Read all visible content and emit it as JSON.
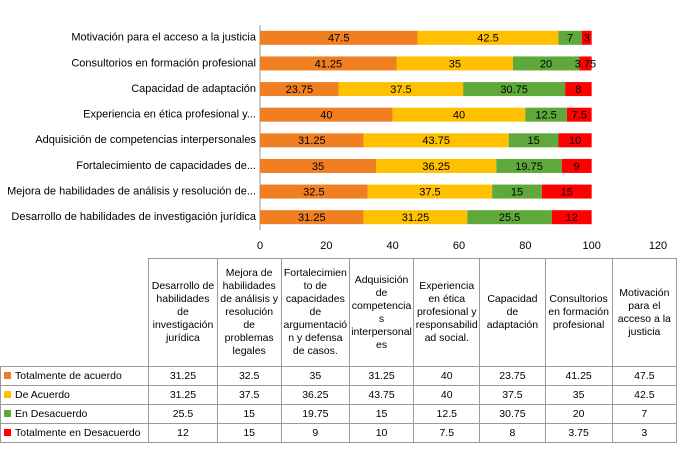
{
  "chart_data": {
    "type": "stacked-bar-horizontal",
    "categories": [
      "Desarrollo de habilidades de investigación jurídica",
      "Mejora de habilidades de análisis y resolución de problemas legales",
      "Fortalecimiento de capacidades de argumentación y defensa de casos.",
      "Adquisición de competencias interpersonales",
      "Experiencia en ética profesional y responsabilidad social.",
      "Capacidad de adaptación",
      "Consultorios en formación profesional",
      "Motivación para el acceso a la justicia"
    ],
    "axis_labels": [
      "Desarrollo de habilidades de investigación jurídica",
      "Mejora de habilidades de análisis y resolución de...",
      "Fortalecimiento de capacidades de...",
      "Adquisición de competencias interpersonales",
      "Experiencia en ética profesional y...",
      "Capacidad de adaptación",
      "Consultorios en formación profesional",
      "Motivación para el acceso a la justicia"
    ],
    "series": [
      {
        "name": "Totalmente de acuerdo",
        "color": "#f07f22",
        "values": [
          31.25,
          32.5,
          35,
          31.25,
          40,
          23.75,
          41.25,
          47.5
        ]
      },
      {
        "name": "De Acuerdo",
        "color": "#ffc000",
        "values": [
          31.25,
          37.5,
          36.25,
          43.75,
          40,
          37.5,
          35,
          42.5
        ]
      },
      {
        "name": "En Desacuerdo",
        "color": "#5fa83a",
        "values": [
          25.5,
          15,
          19.75,
          15,
          12.5,
          30.75,
          20,
          7
        ]
      },
      {
        "name": "Totalmente en Desacuerdo",
        "color": "#ff0000",
        "values": [
          12,
          15,
          9,
          10,
          7.5,
          8,
          3.75,
          3
        ]
      }
    ],
    "xlim": [
      0,
      120
    ],
    "xticks": [
      0,
      20,
      40,
      60,
      80,
      100,
      120
    ],
    "grid": false
  }
}
